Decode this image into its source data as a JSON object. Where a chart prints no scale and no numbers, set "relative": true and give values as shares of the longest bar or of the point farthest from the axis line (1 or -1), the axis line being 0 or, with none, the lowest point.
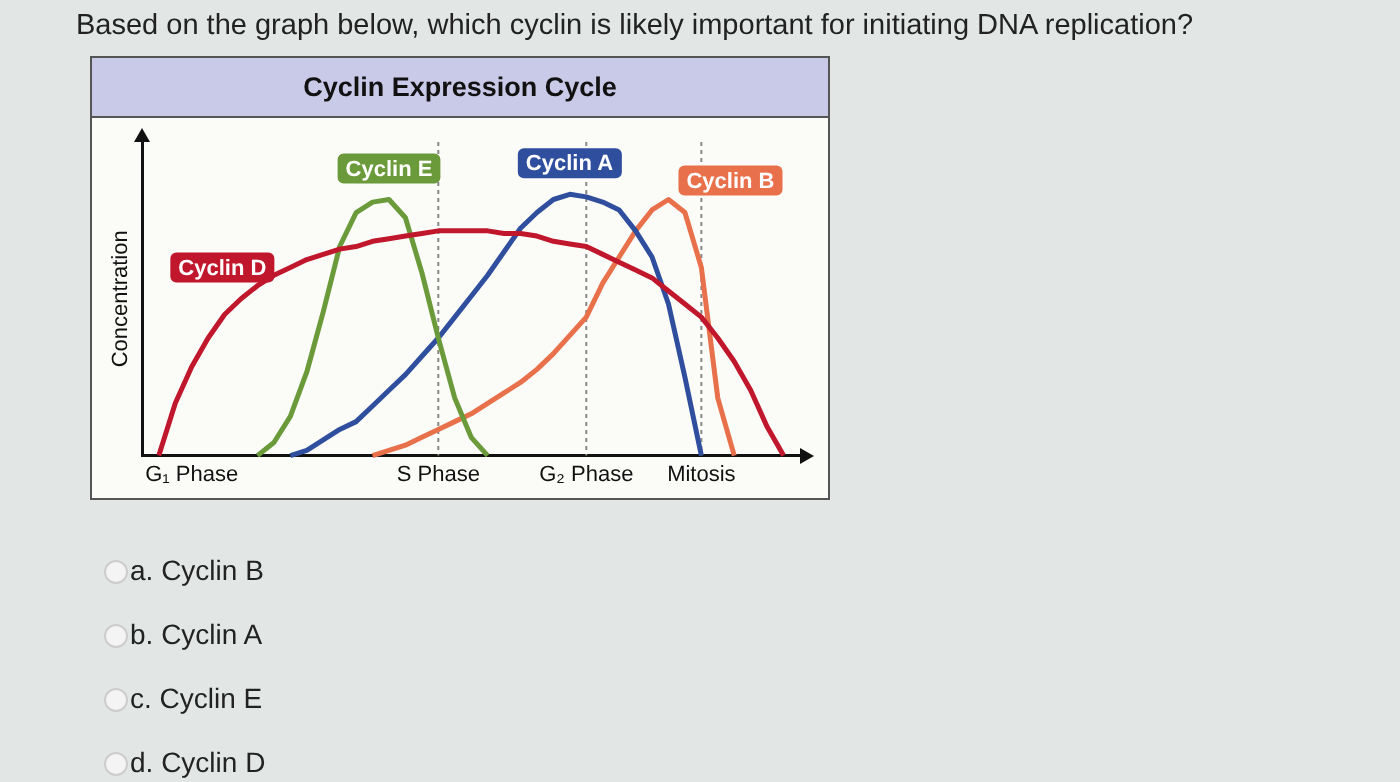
{
  "chart_data": {
    "type": "line",
    "title": "Cyclin Expression Cycle",
    "ylabel": "Concentration",
    "relative": true,
    "categories": [
      null,
      null,
      null,
      "G₁ Phase",
      null,
      null,
      null,
      null,
      null,
      null,
      null,
      null,
      null,
      null,
      null,
      null,
      null,
      null,
      "S Phase",
      null,
      null,
      null,
      null,
      null,
      null,
      null,
      null,
      "G₂ Phase",
      null,
      null,
      null,
      null,
      null,
      null,
      "Mitosis",
      null,
      null,
      null,
      null,
      null,
      null
    ],
    "tick_labels": "x",
    "grid": false,
    "legend": false,
    "marker": "none",
    "line_style": "solid",
    "ref_lines": [
      {
        "axis": "x",
        "value": "S Phase",
        "color": "#888888",
        "line_style": "dotted"
      },
      {
        "axis": "x",
        "value": "G₂ Phase",
        "color": "#888888",
        "line_style": "dotted"
      },
      {
        "axis": "x",
        "value": "Mitosis",
        "color": "#888888",
        "line_style": "dotted"
      }
    ],
    "series": [
      {
        "name": "Cyclin D",
        "color": "#c0172d",
        "values": [
          null,
          0,
          0.2,
          0.34,
          0.45,
          0.54,
          0.6,
          0.65,
          0.69,
          0.72,
          0.75,
          0.77,
          0.79,
          0.8,
          0.82,
          0.83,
          0.84,
          0.85,
          0.86,
          0.86,
          0.86,
          0.86,
          0.85,
          0.85,
          0.84,
          0.82,
          0.81,
          0.8,
          0.77,
          0.74,
          0.71,
          0.68,
          0.63,
          0.58,
          0.53,
          0.45,
          0.36,
          0.25,
          0.11,
          0,
          null
        ]
      },
      {
        "name": "Cyclin E",
        "color": "#6b9a3a",
        "values": [
          null,
          null,
          null,
          null,
          null,
          null,
          null,
          0,
          0.05,
          0.15,
          0.32,
          0.55,
          0.8,
          0.93,
          0.97,
          0.98,
          0.91,
          0.7,
          0.45,
          0.22,
          0.07,
          0,
          null,
          null,
          null,
          null,
          null,
          null,
          null,
          null,
          null,
          null,
          null,
          null,
          null,
          null,
          null,
          null,
          null,
          null,
          null
        ]
      },
      {
        "name": "Cyclin A",
        "color": "#2f4f9e",
        "values": [
          null,
          null,
          null,
          null,
          null,
          null,
          null,
          null,
          null,
          0,
          0.02,
          0.06,
          0.1,
          0.13,
          0.19,
          0.25,
          0.31,
          0.38,
          0.45,
          0.53,
          0.61,
          0.69,
          0.78,
          0.87,
          0.93,
          0.98,
          1,
          0.99,
          0.97,
          0.94,
          0.86,
          0.76,
          0.58,
          0.3,
          0,
          null,
          null,
          null,
          null,
          null,
          null
        ]
      },
      {
        "name": "Cyclin B",
        "color": "#e8704a",
        "values": [
          null,
          null,
          null,
          null,
          null,
          null,
          null,
          null,
          null,
          null,
          null,
          null,
          null,
          null,
          0,
          0.02,
          0.04,
          0.07,
          0.1,
          0.13,
          0.16,
          0.2,
          0.24,
          0.28,
          0.33,
          0.39,
          0.46,
          0.53,
          0.66,
          0.76,
          0.86,
          0.94,
          0.98,
          0.93,
          0.72,
          0.22,
          0,
          null,
          null,
          null,
          null
        ]
      }
    ],
    "annotations": [
      "Based on the graph below, which cyclin is likely important for initiating DNA replication?",
      "a.  Cyclin B",
      "b.  Cyclin A",
      "c.  Cyclin E",
      "d.  Cyclin D"
    ]
  }
}
